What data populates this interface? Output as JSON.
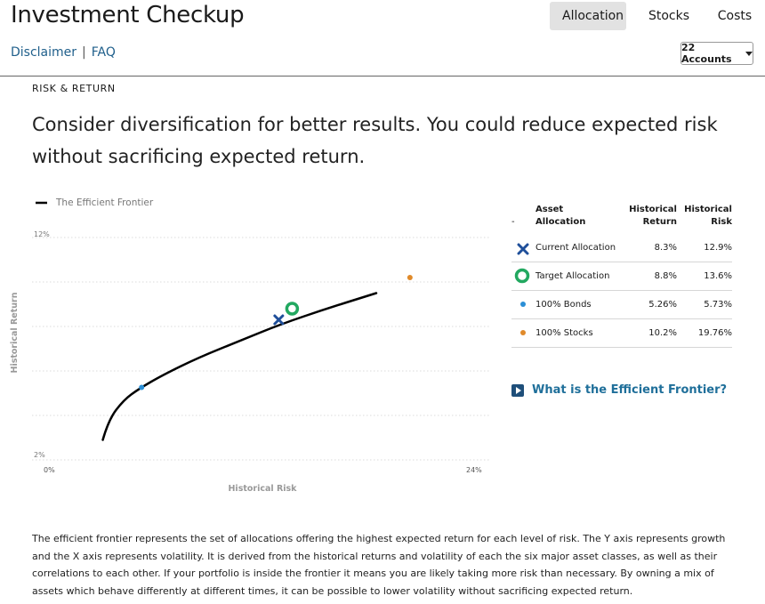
{
  "app": {
    "title": "Investment Checkup",
    "links": {
      "disclaimer": "Disclaimer",
      "separator": "|",
      "faq": "FAQ"
    }
  },
  "tabs": [
    {
      "label": "Allocation",
      "active": true
    },
    {
      "label": "Stocks",
      "active": false
    },
    {
      "label": "Costs",
      "active": false
    }
  ],
  "accounts_dropdown": {
    "label": "22 Accounts"
  },
  "section": {
    "label": "RISK & RETURN",
    "headline": "Consider diversification for better results. You could reduce expected risk without sacrificing expected return."
  },
  "chart_data": {
    "type": "scatter",
    "legend": "The Efficient Frontier",
    "xlabel": "Historical Risk",
    "ylabel": "Historical Return",
    "xlim": [
      0,
      24
    ],
    "ylim": [
      2,
      12
    ],
    "x_ticks": [
      "0%",
      "24%"
    ],
    "y_ticks": [
      "12%",
      "2%"
    ],
    "frontier": [
      {
        "x": 3.7,
        "y": 2.9
      },
      {
        "x": 4.0,
        "y": 3.8
      },
      {
        "x": 4.8,
        "y": 4.7
      },
      {
        "x": 5.6,
        "y": 5.2
      },
      {
        "x": 6.8,
        "y": 5.8
      },
      {
        "x": 8.7,
        "y": 6.6
      },
      {
        "x": 11.0,
        "y": 7.4
      },
      {
        "x": 13.0,
        "y": 8.1
      },
      {
        "x": 15.4,
        "y": 8.8
      },
      {
        "x": 18.0,
        "y": 9.5
      }
    ],
    "points": [
      {
        "name": "Current Allocation",
        "x": 12.9,
        "y": 8.3,
        "marker": "x",
        "color": "#1f4f9a"
      },
      {
        "name": "Target Allocation",
        "x": 13.6,
        "y": 8.8,
        "marker": "ring",
        "color": "#22a860"
      },
      {
        "name": "100% Bonds",
        "x": 5.73,
        "y": 5.26,
        "marker": "dot",
        "color": "#2b8fd6"
      },
      {
        "name": "100% Stocks",
        "x": 19.76,
        "y": 10.2,
        "marker": "dot",
        "color": "#e08a2a"
      }
    ],
    "grid": true
  },
  "table": {
    "legend_dash": "-",
    "headers": {
      "allocation": "Asset Allocation",
      "return": "Historical Return",
      "risk": "Historical Risk"
    },
    "rows": [
      {
        "name": "Current Allocation",
        "return": "8.3%",
        "risk": "12.9%",
        "icon": "x-marker-icon"
      },
      {
        "name": "Target Allocation",
        "return": "8.8%",
        "risk": "13.6%",
        "icon": "ring-marker-icon"
      },
      {
        "name": "100% Bonds",
        "return": "5.26%",
        "risk": "5.73%",
        "icon": "blue-dot-icon"
      },
      {
        "name": "100% Stocks",
        "return": "10.2%",
        "risk": "19.76%",
        "icon": "orange-dot-icon"
      }
    ]
  },
  "efficient_frontier_link": "What is the Efficient Frontier?",
  "description": "The efficient frontier represents the set of allocations offering the highest expected return for each level of risk. The Y axis represents growth and the X axis represents volatility. It is derived from the historical returns and volatility of each the six major asset classes, as well as their correlations to each other. If your portfolio is inside the frontier it means you are likely taking more risk than necessary. By owning a mix of assets which behave differently at different times, it can be possible to lower volatility without sacrificing expected return.",
  "colors": {
    "link": "#1f5f8b",
    "current": "#1f4f9a",
    "target": "#22a860",
    "bonds": "#2b8fd6",
    "stocks": "#e08a2a",
    "tab_active_bg": "#e2e2e2"
  }
}
